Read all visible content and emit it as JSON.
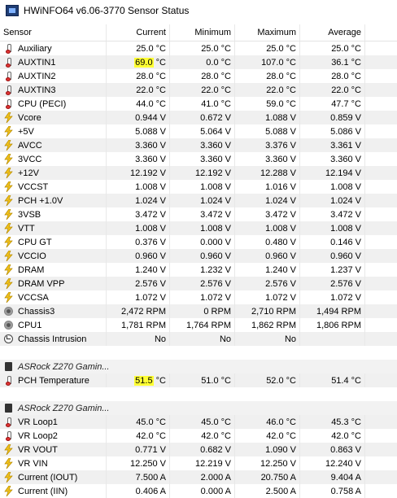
{
  "window": {
    "title": "HWiNFO64 v6.06-3770 Sensor Status"
  },
  "columns": {
    "sensor": "Sensor",
    "current": "Current",
    "minimum": "Minimum",
    "maximum": "Maximum",
    "average": "Average"
  },
  "rows": [
    {
      "name": "Auxiliary",
      "icon": "thermo",
      "cur": "25.0 °C",
      "min": "25.0 °C",
      "max": "25.0 °C",
      "avg": "25.0 °C"
    },
    {
      "name": "AUXTIN1",
      "icon": "thermo",
      "cur_num": "69.0",
      "cur_unit": " °C",
      "cur_hl": true,
      "min": "0.0 °C",
      "max": "107.0 °C",
      "avg": "36.1 °C"
    },
    {
      "name": "AUXTIN2",
      "icon": "thermo",
      "cur": "28.0 °C",
      "min": "28.0 °C",
      "max": "28.0 °C",
      "avg": "28.0 °C"
    },
    {
      "name": "AUXTIN3",
      "icon": "thermo",
      "cur": "22.0 °C",
      "min": "22.0 °C",
      "max": "22.0 °C",
      "avg": "22.0 °C"
    },
    {
      "name": "CPU (PECI)",
      "icon": "thermo",
      "cur": "44.0 °C",
      "min": "41.0 °C",
      "max": "59.0 °C",
      "avg": "47.7 °C"
    },
    {
      "name": "Vcore",
      "icon": "bolt",
      "cur": "0.944 V",
      "min": "0.672 V",
      "max": "1.088 V",
      "avg": "0.859 V"
    },
    {
      "name": "+5V",
      "icon": "bolt",
      "cur": "5.088 V",
      "min": "5.064 V",
      "max": "5.088 V",
      "avg": "5.086 V"
    },
    {
      "name": "AVCC",
      "icon": "bolt",
      "cur": "3.360 V",
      "min": "3.360 V",
      "max": "3.376 V",
      "avg": "3.361 V"
    },
    {
      "name": "3VCC",
      "icon": "bolt",
      "cur": "3.360 V",
      "min": "3.360 V",
      "max": "3.360 V",
      "avg": "3.360 V"
    },
    {
      "name": "+12V",
      "icon": "bolt",
      "cur": "12.192 V",
      "min": "12.192 V",
      "max": "12.288 V",
      "avg": "12.194 V"
    },
    {
      "name": "VCCST",
      "icon": "bolt",
      "cur": "1.008 V",
      "min": "1.008 V",
      "max": "1.016 V",
      "avg": "1.008 V"
    },
    {
      "name": "PCH +1.0V",
      "icon": "bolt",
      "cur": "1.024 V",
      "min": "1.024 V",
      "max": "1.024 V",
      "avg": "1.024 V"
    },
    {
      "name": "3VSB",
      "icon": "bolt",
      "cur": "3.472 V",
      "min": "3.472 V",
      "max": "3.472 V",
      "avg": "3.472 V"
    },
    {
      "name": "VTT",
      "icon": "bolt",
      "cur": "1.008 V",
      "min": "1.008 V",
      "max": "1.008 V",
      "avg": "1.008 V"
    },
    {
      "name": "CPU GT",
      "icon": "bolt",
      "cur": "0.376 V",
      "min": "0.000 V",
      "max": "0.480 V",
      "avg": "0.146 V"
    },
    {
      "name": "VCCIO",
      "icon": "bolt",
      "cur": "0.960 V",
      "min": "0.960 V",
      "max": "0.960 V",
      "avg": "0.960 V"
    },
    {
      "name": "DRAM",
      "icon": "bolt",
      "cur": "1.240 V",
      "min": "1.232 V",
      "max": "1.240 V",
      "avg": "1.237 V"
    },
    {
      "name": "DRAM VPP",
      "icon": "bolt",
      "cur": "2.576 V",
      "min": "2.576 V",
      "max": "2.576 V",
      "avg": "2.576 V"
    },
    {
      "name": "VCCSA",
      "icon": "bolt",
      "cur": "1.072 V",
      "min": "1.072 V",
      "max": "1.072 V",
      "avg": "1.072 V"
    },
    {
      "name": "Chassis3",
      "icon": "fan",
      "cur": "2,472 RPM",
      "min": "0 RPM",
      "max": "2,710 RPM",
      "avg": "1,494 RPM"
    },
    {
      "name": "CPU1",
      "icon": "fan",
      "cur": "1,781 RPM",
      "min": "1,764 RPM",
      "max": "1,862 RPM",
      "avg": "1,806 RPM"
    },
    {
      "name": "Chassis Intrusion",
      "icon": "clock",
      "cur": "No",
      "min": "No",
      "max": "No",
      "avg": ""
    }
  ],
  "section2": {
    "title": "ASRock Z270 Gamin...",
    "rows": [
      {
        "name": "PCH Temperature",
        "icon": "thermo",
        "cur_num": "51.5",
        "cur_unit": " °C",
        "cur_hl": true,
        "min": "51.0 °C",
        "max": "52.0 °C",
        "avg": "51.4 °C"
      }
    ]
  },
  "section3": {
    "title": "ASRock Z270 Gamin...",
    "rows": [
      {
        "name": "VR Loop1",
        "icon": "thermo",
        "cur": "45.0 °C",
        "min": "45.0 °C",
        "max": "46.0 °C",
        "avg": "45.3 °C"
      },
      {
        "name": "VR Loop2",
        "icon": "thermo",
        "cur": "42.0 °C",
        "min": "42.0 °C",
        "max": "42.0 °C",
        "avg": "42.0 °C"
      },
      {
        "name": "VR VOUT",
        "icon": "bolt",
        "cur": "0.771 V",
        "min": "0.682 V",
        "max": "1.090 V",
        "avg": "0.863 V"
      },
      {
        "name": "VR VIN",
        "icon": "bolt",
        "cur": "12.250 V",
        "min": "12.219 V",
        "max": "12.250 V",
        "avg": "12.240 V"
      },
      {
        "name": "Current (IOUT)",
        "icon": "bolt",
        "cur": "7.500 A",
        "min": "2.000 A",
        "max": "20.750 A",
        "avg": "9.404 A"
      },
      {
        "name": "Current (IIN)",
        "icon": "bolt",
        "cur": "0.406 A",
        "min": "0.000 A",
        "max": "2.500 A",
        "avg": "0.758 A"
      }
    ]
  }
}
